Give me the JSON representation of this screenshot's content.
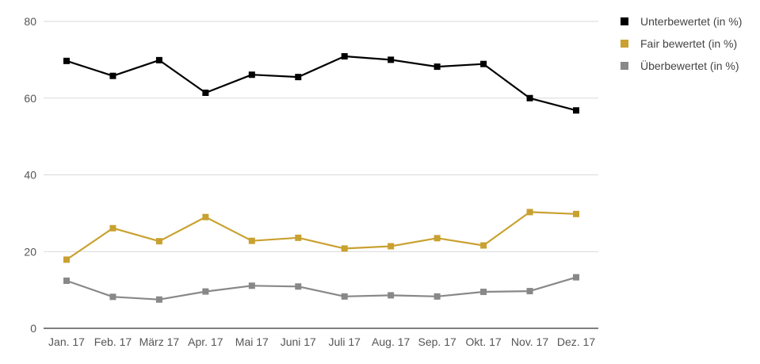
{
  "colors": {
    "grid": "#d9d9d9",
    "axis": "#333333"
  },
  "chart_data": {
    "type": "line",
    "title": "",
    "xlabel": "",
    "ylabel": "",
    "categories": [
      "Jan. 17",
      "Feb. 17",
      "März 17",
      "Apr. 17",
      "Mai 17",
      "Juni 17",
      "Juli 17",
      "Aug. 17",
      "Sep. 17",
      "Okt. 17",
      "Nov. 17",
      "Dez. 17"
    ],
    "ylim": [
      0,
      80
    ],
    "yticks": [
      "0",
      "20",
      "40",
      "60",
      "80"
    ],
    "grid": true,
    "legend_position": "top-right",
    "series": [
      {
        "name": "Unterbewertet (in %)",
        "color": "#000000",
        "values": [
          69.7,
          65.8,
          69.9,
          61.4,
          66.1,
          65.5,
          70.9,
          70.0,
          68.2,
          68.9,
          60.0,
          56.8
        ]
      },
      {
        "name": "Fair bewertet (in %)",
        "color": "#c9a130",
        "values": [
          17.9,
          26.1,
          22.7,
          29.0,
          22.8,
          23.6,
          20.8,
          21.4,
          23.5,
          21.6,
          30.3,
          29.8
        ]
      },
      {
        "name": "Überbewertet (in %)",
        "color": "#888888",
        "values": [
          12.4,
          8.2,
          7.5,
          9.6,
          11.1,
          10.9,
          8.3,
          8.6,
          8.3,
          9.5,
          9.7,
          13.3
        ]
      }
    ]
  }
}
